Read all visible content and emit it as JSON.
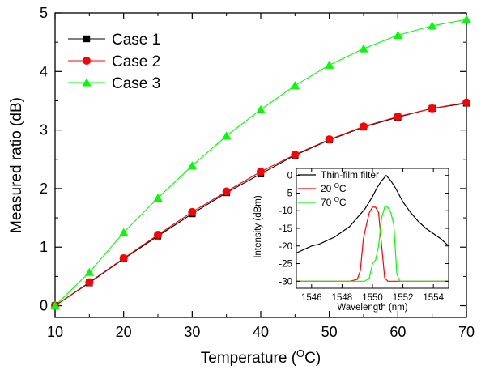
{
  "chart_data": [
    {
      "type": "line",
      "xlabel": "Temperature (",
      "xlabel_sup": "O",
      "xlabel_tail": "C)",
      "ylabel": "Measured ratio (dB)",
      "xlim": [
        10,
        70
      ],
      "ylim": [
        -0.2,
        5
      ],
      "xticks": [
        "10",
        "20",
        "30",
        "40",
        "50",
        "60",
        "70"
      ],
      "yticks": [
        "0",
        "1",
        "2",
        "3",
        "4",
        "5"
      ],
      "legend_position": "top-left",
      "x": [
        10,
        15,
        20,
        25,
        30,
        35,
        40,
        45,
        50,
        55,
        60,
        65,
        70
      ],
      "series": [
        {
          "name": "Case 1",
          "color": "#000000",
          "marker": "square",
          "values": [
            0,
            0.39,
            0.8,
            1.19,
            1.57,
            1.93,
            2.25,
            2.57,
            2.83,
            3.05,
            3.22,
            3.37,
            3.46
          ]
        },
        {
          "name": "Case 2",
          "color": "#ff0000",
          "marker": "circle",
          "values": [
            0,
            0.4,
            0.81,
            1.21,
            1.6,
            1.95,
            2.29,
            2.58,
            2.84,
            3.06,
            3.23,
            3.37,
            3.47
          ]
        },
        {
          "name": "Case 3",
          "color": "#00ff00",
          "marker": "triangle",
          "values": [
            0,
            0.57,
            1.25,
            1.84,
            2.39,
            2.9,
            3.35,
            3.76,
            4.11,
            4.39,
            4.62,
            4.78,
            4.89
          ]
        }
      ]
    },
    {
      "type": "line",
      "role": "inset",
      "xlabel": "Wavelength (nm)",
      "ylabel": "Intensity (dBm)",
      "xlim": [
        1545,
        1555
      ],
      "ylim": [
        -32,
        2
      ],
      "xticks": [
        "1546",
        "1548",
        "1550",
        "1552",
        "1554"
      ],
      "yticks": [
        "0",
        "-5",
        "-10",
        "-15",
        "-20",
        "-25",
        "-30"
      ],
      "legend_position": "top-left",
      "series": [
        {
          "name": "Thin-film filter",
          "color": "#000000",
          "x": [
            1545,
            1545.5,
            1546,
            1546.5,
            1547,
            1547.5,
            1548,
            1548.5,
            1549,
            1549.5,
            1550,
            1550.3,
            1550.6,
            1550.9,
            1551.2,
            1551.5,
            1552,
            1552.5,
            1553,
            1553.5,
            1554,
            1554.5,
            1555
          ],
          "y": [
            -22,
            -21,
            -20,
            -19.5,
            -18.5,
            -17.5,
            -16,
            -14.5,
            -12,
            -9.5,
            -6,
            -3.5,
            -1.5,
            0,
            -1.5,
            -3.5,
            -7.5,
            -10.5,
            -13,
            -15,
            -16.5,
            -18,
            -20
          ]
        },
        {
          "name": "20 ",
          "name_sup": "O",
          "name_tail": "C",
          "color": "#ff0000",
          "x": [
            1545,
            1548.5,
            1549,
            1549.2,
            1549.4,
            1549.6,
            1549.8,
            1550,
            1550.2,
            1550.4,
            1550.6,
            1550.8,
            1551,
            1555
          ],
          "y": [
            -30,
            -30,
            -29.5,
            -27,
            -18,
            -14,
            -10.5,
            -9,
            -9,
            -10.5,
            -20,
            -29,
            -30,
            -30
          ]
        },
        {
          "name": "70 ",
          "name_sup": "O",
          "name_tail": "C",
          "color": "#00ff00",
          "x": [
            1545,
            1549.5,
            1549.8,
            1550,
            1550.2,
            1550.4,
            1550.6,
            1550.8,
            1551,
            1551.2,
            1551.4,
            1551.6,
            1551.8,
            1555
          ],
          "y": [
            -30,
            -30,
            -29,
            -25,
            -24,
            -20,
            -12,
            -9,
            -9,
            -10.5,
            -14,
            -28,
            -30,
            -30
          ]
        }
      ]
    }
  ]
}
